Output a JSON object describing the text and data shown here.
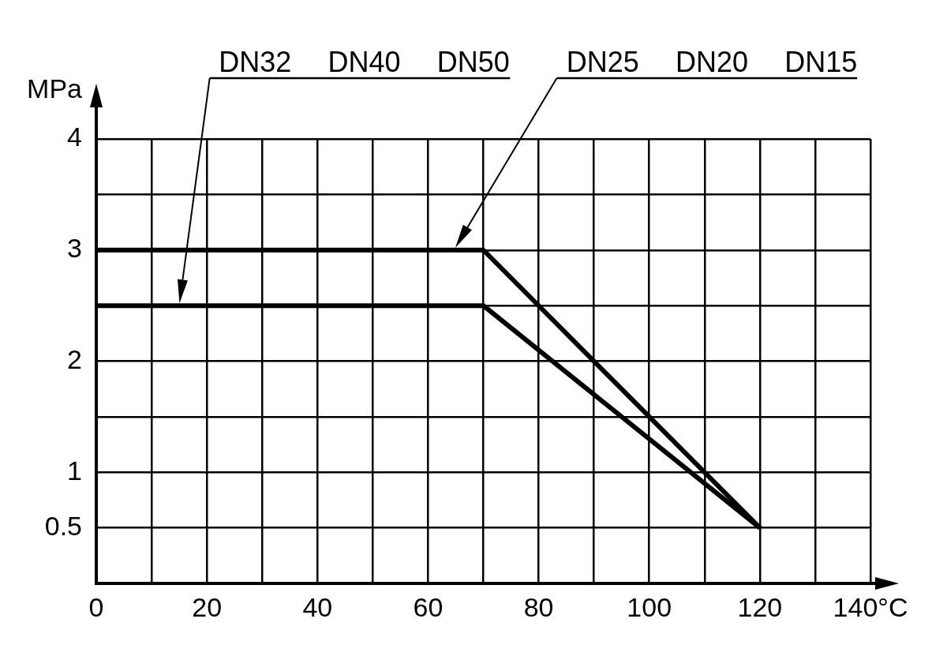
{
  "chart_data": {
    "type": "line",
    "ylabel": "MPa",
    "x": [
      0,
      70,
      120
    ],
    "series": [
      {
        "color": "#000000",
        "values": [
          3,
          3,
          0.5
        ]
      },
      {
        "color": "#000000",
        "values": [
          2.5,
          2.5,
          0.5
        ]
      }
    ],
    "xlim": [
      0,
      140
    ],
    "ylim": [
      0,
      4
    ],
    "xticks": [
      0,
      {
        "value": 10,
        "label": null
      },
      20,
      {
        "value": 30,
        "label": null
      },
      40,
      {
        "value": 50,
        "label": null
      },
      60,
      {
        "value": 70,
        "label": null
      },
      80,
      {
        "value": 90,
        "label": null
      },
      100,
      {
        "value": 110,
        "label": null
      },
      120,
      {
        "value": 130,
        "label": null
      },
      {
        "value": 140,
        "label": "140°C"
      }
    ],
    "yticks": [
      0.5,
      1,
      {
        "value": 1.5,
        "label": null
      },
      2,
      {
        "value": 2.5,
        "label": null
      },
      3,
      {
        "value": 3.5,
        "label": null
      },
      4
    ],
    "grid": true,
    "marker": "none",
    "line_style": "solid",
    "annotations": [
      "DN32 DN40 DN50",
      "DN25 DN20 DN15"
    ]
  }
}
